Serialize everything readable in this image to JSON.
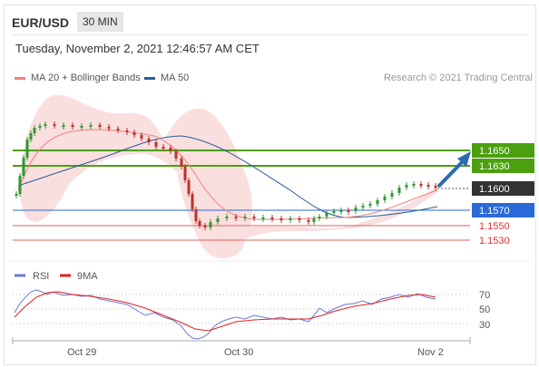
{
  "header": {
    "pair": "EUR/USD",
    "timeframe": "30 MIN",
    "date": "Tuesday, November 2, 2021 12:46:57 AM CET"
  },
  "legend": {
    "items": [
      {
        "label": "MA 20 + Bollinger Bands",
        "color": "#f08080"
      },
      {
        "label": "MA 50",
        "color": "#2a5a9a"
      }
    ],
    "credit": "Research © 2021 Trading Central"
  },
  "price_levels": [
    {
      "label": "1.1650",
      "type": "resistance",
      "color": "#4ca010"
    },
    {
      "label": "1.1630",
      "type": "resistance",
      "color": "#4ca010"
    },
    {
      "label": "1.1600",
      "type": "current",
      "color": "#333333"
    },
    {
      "label": "1.1570",
      "type": "pivot",
      "color": "#2a6ad8"
    },
    {
      "label": "1.1550",
      "type": "support",
      "color": "#e03030"
    },
    {
      "label": "1.1530",
      "type": "support",
      "color": "#e03030"
    }
  ],
  "rsi_legend": {
    "items": [
      {
        "label": "RSI",
        "color": "#6a7ad8"
      },
      {
        "label": "9MA",
        "color": "#e02020"
      }
    ],
    "levels": [
      "70",
      "50",
      "30"
    ]
  },
  "x_axis": {
    "labels": [
      "Oct 29",
      "Oct 30",
      "Nov 2"
    ]
  },
  "colors": {
    "up": "#2e9a2e",
    "down": "#c0302a",
    "band": "#f6c4c4",
    "ma20": "#f08080",
    "ma50": "#2a5a9a",
    "arrow": "#2a6ab0"
  }
}
